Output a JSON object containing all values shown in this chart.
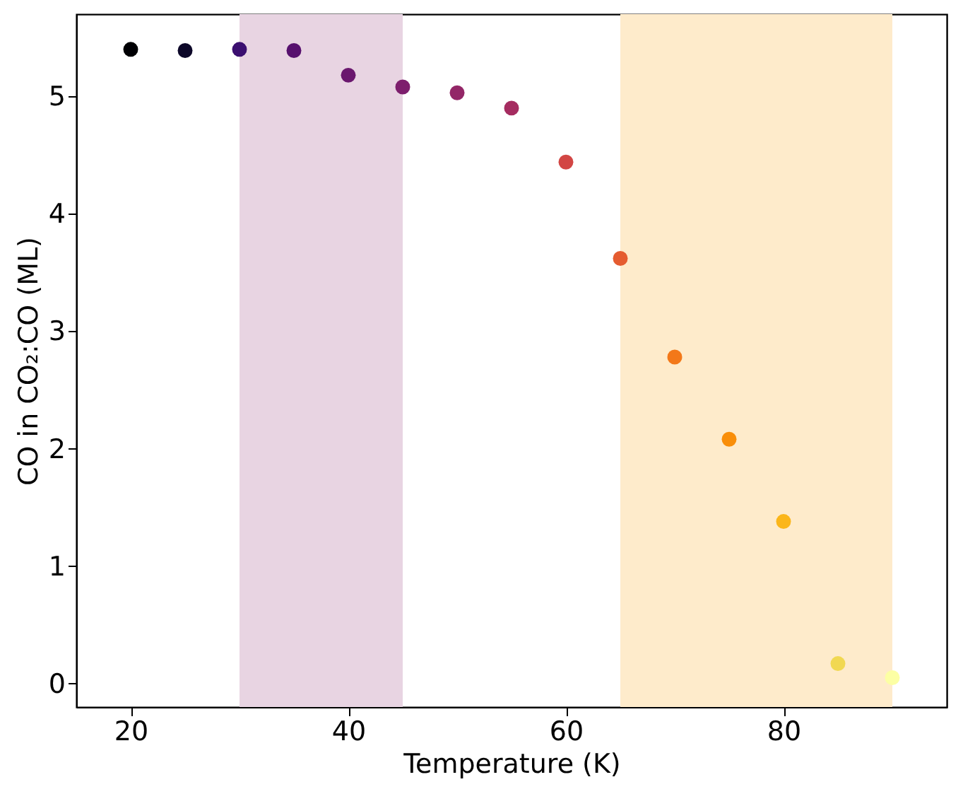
{
  "chart_data": {
    "type": "scatter",
    "xlabel": "Temperature (K)",
    "ylabel": "CO in CO₂:CO (ML)",
    "x": [
      20,
      25,
      30,
      35,
      40,
      45,
      50,
      55,
      60,
      65,
      70,
      75,
      80,
      85,
      90
    ],
    "series": [
      {
        "values": [
          5.4,
          5.39,
          5.4,
          5.39,
          5.18,
          5.08,
          5.03,
          4.9,
          4.44,
          3.62,
          2.78,
          2.08,
          1.38,
          0.17,
          0.05
        ],
        "colors": [
          "#000004",
          "#0d0829",
          "#3b0f70",
          "#57106e",
          "#6a176e",
          "#7d1e6d",
          "#932667",
          "#a52c60",
          "#d24644",
          "#e55c30",
          "#f37819",
          "#f98e09",
          "#fbb61a",
          "#f1d852",
          "#fcffa4"
        ]
      }
    ],
    "xlim": [
      15,
      95
    ],
    "ylim": [
      -0.2,
      5.7
    ],
    "xticks": [
      20,
      40,
      60,
      80
    ],
    "yticks": [
      0,
      1,
      2,
      3,
      4,
      5
    ],
    "bands": [
      {
        "axis": "x",
        "from": 30,
        "to": 45,
        "color": "#e8d4e2"
      },
      {
        "axis": "x",
        "from": 65,
        "to": 90,
        "color": "#feebcb"
      }
    ],
    "grid": false,
    "marker": "circle"
  }
}
